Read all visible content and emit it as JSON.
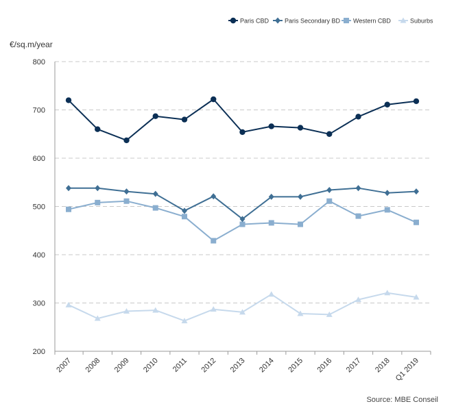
{
  "chart_data": {
    "type": "line",
    "title": "",
    "ylabel": "€/sq.m/year",
    "xlabel": "",
    "ylim": [
      200,
      800
    ],
    "yticks": [
      200,
      300,
      400,
      500,
      600,
      700,
      800
    ],
    "grid": true,
    "legend_position": "top-right",
    "categories": [
      "2007",
      "2008",
      "2009",
      "2010",
      "2011",
      "2012",
      "2013",
      "2014",
      "2015",
      "2016",
      "2017",
      "2018",
      "Q1 2019"
    ],
    "series": [
      {
        "name": "Paris CBD",
        "color": "#0b2f55",
        "marker": "circle",
        "values": [
          720,
          660,
          637,
          687,
          680,
          722,
          654,
          666,
          663,
          650,
          686,
          711,
          718
        ]
      },
      {
        "name": "Paris Secondary BD",
        "color": "#3f6f94",
        "marker": "diamond",
        "values": [
          538,
          538,
          531,
          526,
          491,
          521,
          474,
          520,
          520,
          534,
          538,
          528,
          531
        ]
      },
      {
        "name": "Western CBD",
        "color": "#8aaecf",
        "marker": "square",
        "values": [
          494,
          508,
          511,
          497,
          479,
          429,
          463,
          466,
          463,
          511,
          480,
          493,
          467
        ]
      },
      {
        "name": "Suburbs",
        "color": "#c6d9ec",
        "marker": "triangle",
        "values": [
          296,
          268,
          283,
          285,
          263,
          287,
          281,
          318,
          278,
          276,
          307,
          321,
          312
        ]
      }
    ],
    "source": "Source: MBE Conseil"
  }
}
